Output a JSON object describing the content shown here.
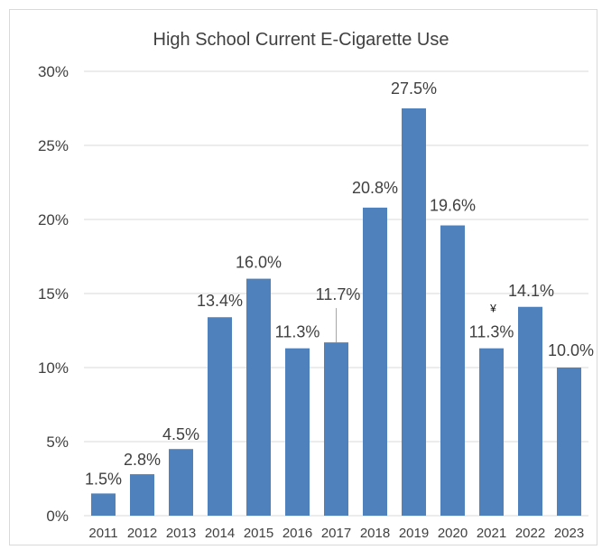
{
  "chart_data": {
    "type": "bar",
    "title": "High School Current E-Cigarette Use",
    "xlabel": "",
    "ylabel": "",
    "categories": [
      "2011",
      "2012",
      "2013",
      "2014",
      "2015",
      "2016",
      "2017",
      "2018",
      "2019",
      "2020",
      "2021",
      "2022",
      "2023"
    ],
    "values": [
      1.5,
      2.8,
      4.5,
      13.4,
      16.0,
      11.3,
      11.7,
      20.8,
      27.5,
      19.6,
      11.3,
      14.1,
      10.0
    ],
    "value_labels": [
      "1.5%",
      "2.8%",
      "4.5%",
      "13.4%",
      "16.0%",
      "11.3%",
      "11.7%",
      "20.8%",
      "27.5%",
      "19.6%",
      "11.3%",
      "14.1%",
      "10.0%"
    ],
    "annotations": [
      {
        "category": "2021",
        "text": "¥"
      }
    ],
    "ylim": [
      0,
      30
    ],
    "yticks": [
      0,
      5,
      10,
      15,
      20,
      25,
      30
    ],
    "ytick_labels": [
      "0%",
      "5%",
      "10%",
      "15%",
      "20%",
      "25%",
      "30%"
    ],
    "grid": true,
    "legend": "none",
    "colors": {
      "bar": "#4F81BD",
      "grid": "#d9d9d9",
      "text": "#404040",
      "leader": "#a6a6a6"
    }
  }
}
